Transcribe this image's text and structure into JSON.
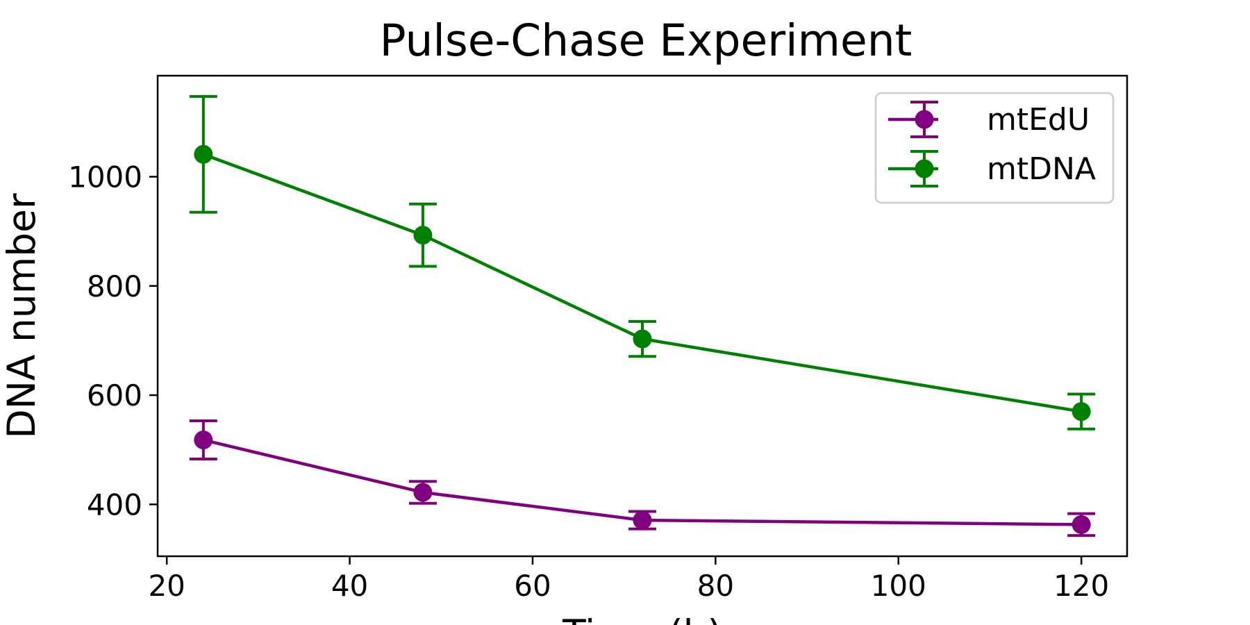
{
  "chart_data": {
    "type": "line",
    "title": "Pulse-Chase Experiment",
    "xlabel": "Time (h)",
    "ylabel": "DNA number",
    "x": [
      24,
      48,
      72,
      120
    ],
    "xlim": [
      19,
      125
    ],
    "ylim": [
      305,
      1185
    ],
    "xticks": [
      20,
      40,
      60,
      80,
      100,
      120
    ],
    "yticks": [
      400,
      600,
      800,
      1000
    ],
    "grid": false,
    "legend_position": "top-right",
    "series": [
      {
        "name": "mtEdU",
        "color": "#800080",
        "marker": "circle",
        "values": [
          518,
          422,
          371,
          363
        ],
        "errors": [
          35,
          20,
          16,
          20
        ]
      },
      {
        "name": "mtDNA",
        "color": "#008000",
        "marker": "circle",
        "values": [
          1041,
          893,
          703,
          570
        ],
        "errors": [
          106,
          57,
          32,
          32
        ]
      }
    ]
  }
}
